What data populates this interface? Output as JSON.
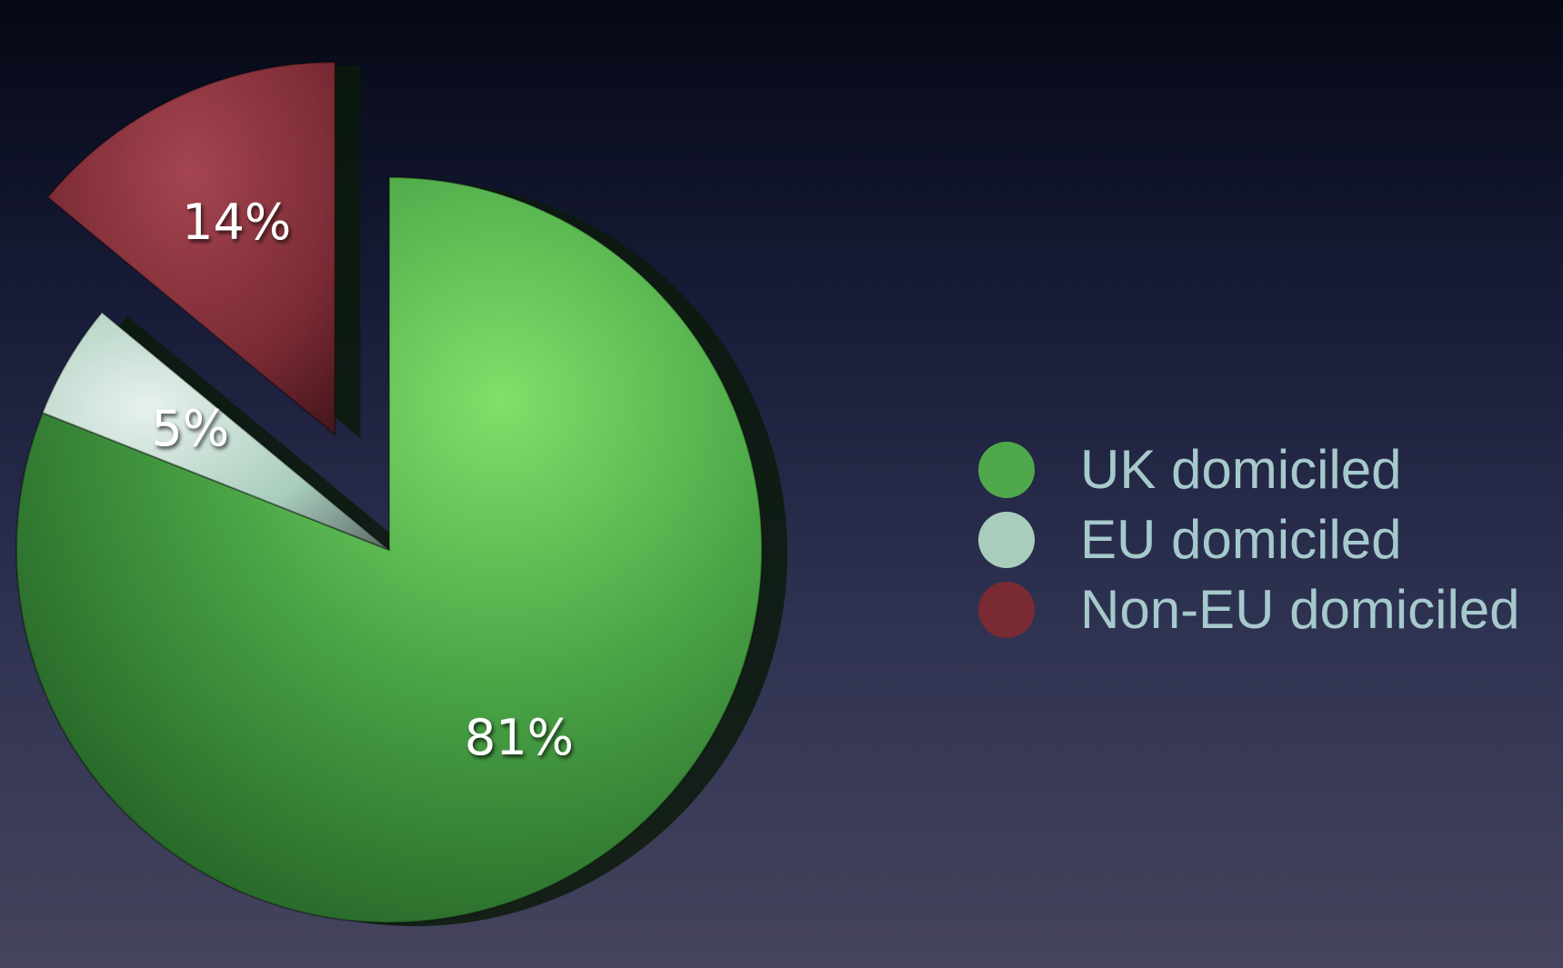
{
  "chart_data": {
    "type": "pie",
    "categories": [
      "UK domiciled",
      "EU domiciled",
      "Non-EU domiciled"
    ],
    "values": [
      81,
      5,
      14
    ],
    "labels": [
      "81%",
      "5%",
      "14%"
    ],
    "colors": [
      "#4fa84c",
      "#a9cdbd",
      "#7a2a33"
    ],
    "exploded": [
      false,
      false,
      true
    ],
    "legend": {
      "position": "right",
      "entries": [
        "UK domiciled",
        "EU domiciled",
        "Non-EU domiciled"
      ]
    }
  }
}
